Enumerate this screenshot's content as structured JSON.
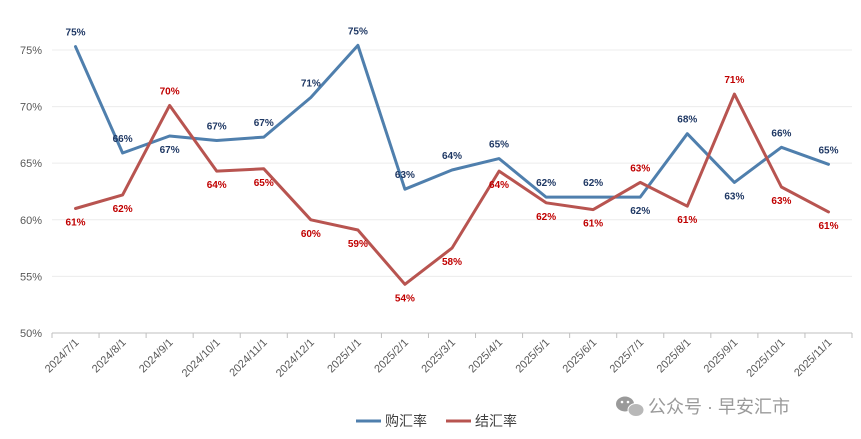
{
  "chart_data": {
    "type": "line",
    "categories": [
      "2024/7/1",
      "2024/8/1",
      "2024/9/1",
      "2024/10/1",
      "2024/11/1",
      "2024/12/1",
      "2025/1/1",
      "2025/2/1",
      "2025/3/1",
      "2025/4/1",
      "2025/5/1",
      "2025/6/1",
      "2025/7/1",
      "2025/8/1",
      "2025/9/1",
      "2025/10/1",
      "2025/11/1"
    ],
    "yticks": [
      "50%",
      "55%",
      "60%",
      "65%",
      "70%",
      "75%"
    ],
    "ylim": [
      50,
      78
    ],
    "series": [
      {
        "name": "购汇率",
        "color": "#4f7fad",
        "label_color": "#1f3864",
        "values": [
          75.3,
          65.9,
          67.4,
          67.0,
          67.3,
          70.8,
          75.4,
          62.7,
          64.4,
          65.4,
          62.0,
          62.0,
          62.0,
          67.6,
          63.3,
          66.4,
          64.9
        ],
        "labels": [
          "75%",
          "66%",
          "67%",
          "67%",
          "67%",
          "71%",
          "75%",
          "63%",
          "64%",
          "65%",
          "62%",
          "62%",
          "62%",
          "68%",
          "63%",
          "66%",
          "65%"
        ]
      },
      {
        "name": "结汇率",
        "color": "#b85450",
        "label_color": "#c00000",
        "values": [
          61.0,
          62.2,
          70.1,
          64.3,
          64.5,
          60.0,
          59.1,
          54.3,
          57.5,
          64.3,
          61.5,
          60.9,
          63.3,
          61.2,
          71.1,
          62.9,
          60.7
        ],
        "labels": [
          "61%",
          "62%",
          "70%",
          "64%",
          "65%",
          "60%",
          "59%",
          "54%",
          "58%",
          "64%",
          "62%",
          "61%",
          "63%",
          "61%",
          "71%",
          "63%",
          "61%"
        ]
      }
    ]
  },
  "watermark": "公众号 · 早安汇市"
}
